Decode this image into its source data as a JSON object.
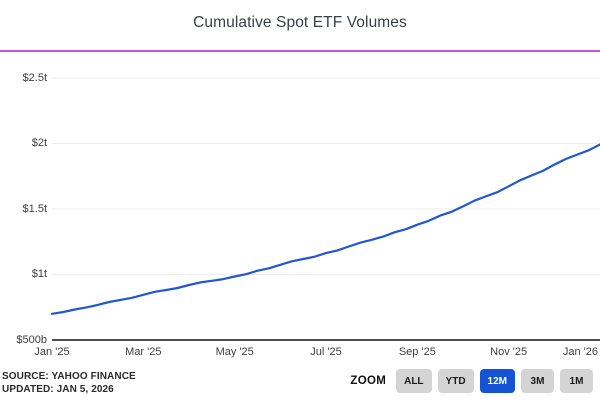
{
  "title": "Cumulative Spot ETF Volumes",
  "colors": {
    "divider_magenta": "#c653e0",
    "line_blue": "#2057d2",
    "zoom_selected_blue": "#1453d4",
    "button_gray": "#d4d4d4",
    "grid_gray": "#ededed",
    "axis_gray": "#4d4d4d"
  },
  "footer": {
    "source": "SOURCE: YAHOO FINANCE",
    "updated": "UPDATED: JAN 5, 2026"
  },
  "zoom_control": {
    "label": "ZOOM",
    "options": [
      "ALL",
      "YTD",
      "12M",
      "3M",
      "1M"
    ],
    "selected": "12M"
  },
  "chart_data": {
    "type": "line",
    "title": "Cumulative Spot ETF Volumes",
    "xlabel": "",
    "ylabel": "",
    "unit": "USD cumulative volume",
    "grid": "horizontal",
    "legend": "none",
    "x_range_months": [
      "Jan '25",
      "Jan '26"
    ],
    "x_tick_labels": [
      "Jan '25",
      "Mar '25",
      "May '25",
      "Jul '25",
      "Sep '25",
      "Nov '25",
      "Jan '26"
    ],
    "y_tick_labels": [
      "$2.5t",
      "$2t",
      "$1.5t",
      "$1t",
      "$500b"
    ],
    "y_tick_values_billion": [
      2500,
      2000,
      1500,
      1000,
      500
    ],
    "ylim_billion": [
      500,
      2500
    ],
    "series": [
      {
        "name": "Cumulative Spot ETF Volumes",
        "color": "#2057d2",
        "x_unit": "weeks since Jan '25 (evenly spaced to Jan '26)",
        "values_billion_usd": [
          700,
          714,
          733,
          749,
          768,
          790,
          806,
          822,
          845,
          868,
          882,
          897,
          920,
          940,
          952,
          965,
          985,
          1002,
          1029,
          1047,
          1074,
          1101,
          1118,
          1136,
          1163,
          1184,
          1214,
          1243,
          1265,
          1289,
          1322,
          1346,
          1380,
          1410,
          1450,
          1479,
          1520,
          1563,
          1596,
          1628,
          1673,
          1719,
          1756,
          1791,
          1839,
          1882,
          1915,
          1948,
          1992
        ]
      }
    ]
  }
}
